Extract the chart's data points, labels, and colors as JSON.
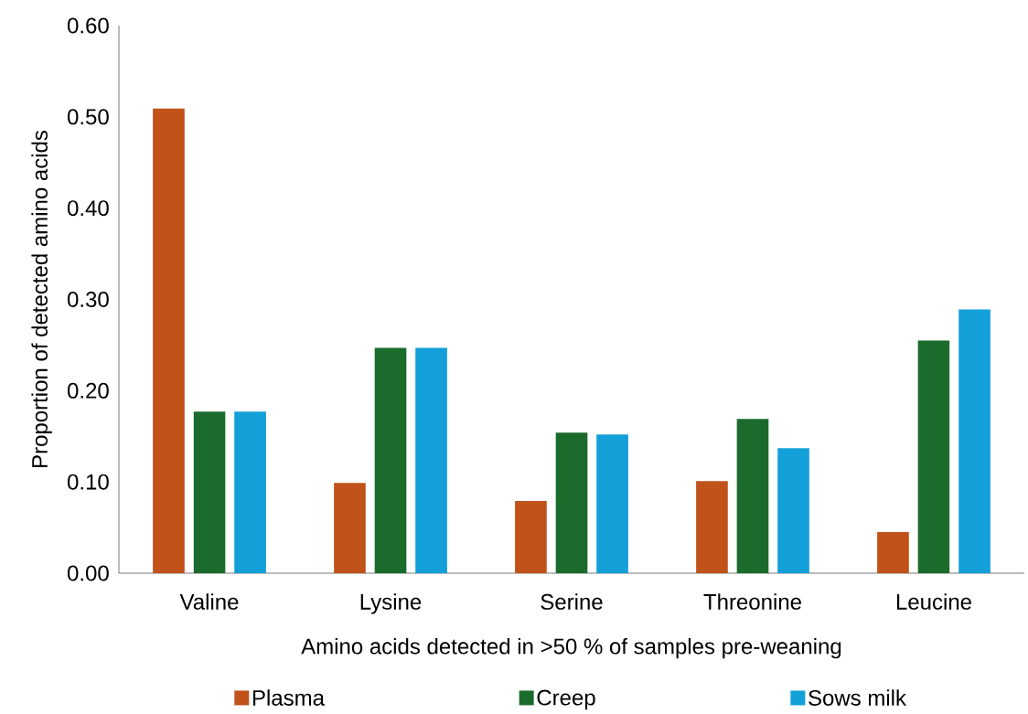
{
  "chart_data": {
    "type": "bar",
    "xlabel": "Amino acids detected in >50 % of samples pre-weaning",
    "ylabel": "Proportion of detected amino acids",
    "categories": [
      "Valine",
      "Lysine",
      "Serine",
      "Threonine",
      "Leucine"
    ],
    "series": [
      {
        "name": "Plasma",
        "color": "#c0521a",
        "values": [
          0.509,
          0.099,
          0.079,
          0.101,
          0.045
        ]
      },
      {
        "name": "Creep",
        "color": "#1a6b2c",
        "values": [
          0.177,
          0.247,
          0.154,
          0.169,
          0.255
        ]
      },
      {
        "name": "Sows milk",
        "color": "#139fd8",
        "values": [
          0.177,
          0.247,
          0.152,
          0.137,
          0.289
        ]
      }
    ],
    "ylim": [
      0,
      0.6
    ],
    "yticks": [
      {
        "value": 0,
        "label": "0.00"
      },
      {
        "value": 0.1,
        "label": "0.10"
      },
      {
        "value": 0.2,
        "label": "0.20"
      },
      {
        "value": 0.3,
        "label": "0.30"
      },
      {
        "value": 0.4,
        "label": "0.40"
      },
      {
        "value": 0.5,
        "label": "0.50"
      },
      {
        "value": 0.6,
        "label": "0.60"
      }
    ],
    "grid": false,
    "legend": "bottom"
  }
}
